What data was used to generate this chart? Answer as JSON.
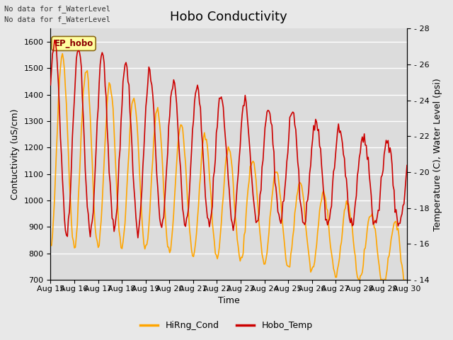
{
  "title": "Hobo Conductivity",
  "xlabel": "Time",
  "ylabel_left": "Contuctivity (uS/cm)",
  "ylabel_right": "Temperature (C), Water Level (psi)",
  "annotation_line1": "No data for f_WaterLevel",
  "annotation_line2": "No data for f_WaterLevel",
  "ep_hobo_label": "EP_hobo",
  "legend_entries": [
    "HiRng_Cond",
    "Hobo_Temp"
  ],
  "line_color_cond": "#FFA500",
  "line_color_temp": "#CC0000",
  "ylim_left": [
    700,
    1650
  ],
  "ylim_right": [
    14,
    28
  ],
  "yticks_left": [
    700,
    800,
    900,
    1000,
    1100,
    1200,
    1300,
    1400,
    1500,
    1600
  ],
  "yticks_right": [
    14,
    16,
    18,
    20,
    22,
    24,
    26,
    28
  ],
  "xtick_labels": [
    "Aug 15",
    "Aug 16",
    "Aug 17",
    "Aug 18",
    "Aug 19",
    "Aug 20",
    "Aug 21",
    "Aug 22",
    "Aug 23",
    "Aug 24",
    "Aug 25",
    "Aug 26",
    "Aug 27",
    "Aug 28",
    "Aug 29",
    "Aug 30"
  ],
  "fig_bg_color": "#E8E8E8",
  "axes_bg_color": "#DCDCDC",
  "grid_color": "#FFFFFF",
  "title_fontsize": 13,
  "axis_label_fontsize": 9,
  "tick_fontsize": 8,
  "linewidth": 1.2
}
